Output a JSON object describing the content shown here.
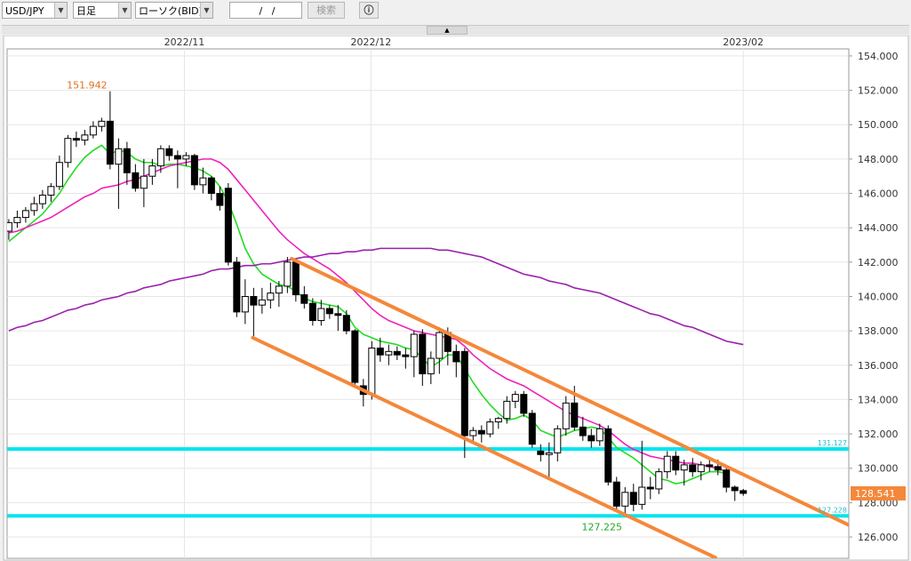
{
  "toolbar": {
    "symbol": "USD/JPY",
    "period": "日足",
    "chart_type": "ローソク(BID)",
    "date": "/   /",
    "search": "検索"
  },
  "chart_data": {
    "type": "candlestick",
    "open": [
      143.8,
      144.3,
      144.6,
      145.0,
      145.4,
      145.9,
      146.4,
      147.8,
      149.2,
      149.1,
      149.4,
      149.9,
      150.2,
      147.7,
      148.6,
      147.2,
      146.3,
      147.0,
      147.6,
      148.6,
      148.2,
      148.0,
      148.2,
      146.5,
      146.9,
      146.0,
      146.3,
      142.0,
      139.1,
      140.0,
      139.5,
      139.8,
      140.2,
      140.6,
      142.0,
      140.1,
      139.6,
      138.6,
      139.3,
      139.0,
      138.9,
      138.0,
      134.8,
      134.3,
      137.0,
      136.6,
      136.8,
      136.6,
      136.5,
      137.8,
      135.5,
      136.4,
      137.9,
      136.8,
      136.8,
      131.9,
      132.2,
      132.0,
      132.7,
      132.9,
      133.9,
      134.3,
      133.2,
      131.0,
      130.8,
      130.9,
      132.3,
      133.8,
      132.4,
      131.9,
      131.6,
      132.3,
      129.2,
      127.8,
      128.6,
      127.9,
      128.9,
      128.8,
      129.8,
      130.7,
      129.9,
      130.2,
      129.8,
      130.2,
      130.1,
      129.9,
      128.9,
      128.7
    ],
    "high": [
      144.5,
      145.0,
      145.2,
      145.8,
      146.2,
      146.6,
      148.2,
      149.4,
      149.6,
      149.7,
      150.2,
      150.4,
      151.942,
      149.2,
      149.0,
      147.7,
      148.0,
      148.0,
      148.8,
      148.8,
      148.5,
      148.4,
      148.3,
      147.5,
      147.0,
      146.4,
      146.6,
      142.3,
      141.0,
      140.5,
      140.5,
      140.8,
      140.9,
      142.3,
      142.2,
      140.6,
      139.9,
      139.8,
      139.5,
      139.5,
      139.2,
      138.1,
      135.2,
      137.4,
      137.6,
      137.2,
      137.1,
      137.0,
      138.0,
      138.1,
      136.8,
      138.2,
      138.2,
      137.2,
      137.0,
      132.4,
      132.5,
      132.9,
      133.0,
      134.2,
      134.5,
      134.5,
      133.4,
      131.4,
      131.5,
      132.5,
      134.2,
      134.8,
      133.0,
      132.3,
      132.6,
      132.5,
      129.5,
      128.9,
      129.1,
      131.6,
      129.5,
      130.0,
      131.0,
      131.0,
      130.5,
      130.6,
      130.4,
      130.5,
      130.5,
      130.2,
      129.0,
      128.8
    ],
    "low": [
      143.3,
      144.0,
      144.3,
      144.7,
      145.1,
      145.5,
      146.2,
      147.5,
      148.7,
      148.8,
      149.2,
      149.6,
      147.4,
      145.1,
      146.5,
      146.1,
      145.2,
      146.5,
      147.2,
      147.9,
      146.3,
      147.6,
      146.2,
      146.0,
      145.6,
      145.0,
      141.8,
      138.8,
      138.4,
      137.6,
      139.0,
      139.3,
      139.4,
      140.2,
      139.7,
      139.3,
      138.3,
      138.3,
      138.7,
      138.0,
      137.8,
      134.8,
      133.6,
      134.0,
      136.2,
      136.0,
      136.3,
      135.8,
      135.3,
      134.8,
      134.9,
      135.5,
      136.0,
      135.3,
      130.6,
      131.6,
      131.5,
      131.8,
      132.3,
      132.6,
      133.5,
      133.0,
      131.2,
      130.4,
      129.5,
      130.4,
      131.9,
      132.2,
      131.6,
      131.2,
      131.3,
      129.0,
      127.5,
      127.225,
      127.5,
      127.6,
      128.2,
      128.5,
      129.4,
      129.6,
      129.0,
      129.5,
      129.3,
      129.8,
      129.6,
      128.6,
      128.1,
      128.4
    ],
    "close": [
      144.3,
      144.6,
      145.0,
      145.4,
      145.9,
      146.4,
      147.8,
      149.2,
      149.1,
      149.4,
      149.9,
      150.2,
      147.7,
      148.6,
      147.2,
      146.3,
      147.0,
      147.6,
      148.6,
      148.2,
      148.0,
      148.2,
      146.5,
      146.9,
      146.0,
      145.3,
      142.0,
      139.1,
      140.0,
      139.5,
      139.8,
      140.2,
      140.6,
      142.0,
      140.1,
      139.6,
      138.6,
      139.3,
      139.0,
      138.9,
      138.0,
      135.0,
      134.3,
      137.0,
      136.6,
      136.8,
      136.6,
      136.5,
      137.8,
      135.5,
      136.4,
      137.9,
      136.8,
      136.2,
      131.9,
      132.2,
      132.0,
      132.7,
      132.9,
      133.9,
      134.3,
      133.2,
      131.4,
      130.8,
      130.9,
      132.3,
      133.8,
      132.4,
      131.9,
      131.6,
      132.3,
      129.2,
      127.8,
      128.6,
      127.9,
      128.9,
      128.8,
      129.8,
      130.7,
      129.9,
      130.2,
      129.8,
      130.2,
      130.1,
      129.9,
      128.9,
      128.7,
      128.541
    ],
    "series": [
      {
        "color": "#22dd22",
        "values": [
          143.2,
          143.6,
          144.0,
          144.4,
          144.8,
          145.4,
          146.0,
          146.8,
          147.5,
          148.1,
          148.5,
          148.8,
          148.3,
          148.5,
          148.4,
          148.0,
          147.8,
          147.8,
          147.6,
          147.7,
          147.7,
          147.6,
          147.5,
          147.3,
          147.0,
          146.4,
          145.5,
          144.2,
          142.8,
          141.9,
          141.3,
          141.0,
          140.7,
          140.6,
          140.3,
          139.9,
          139.7,
          139.6,
          139.5,
          139.4,
          139.0,
          138.2,
          137.8,
          137.6,
          137.4,
          137.3,
          137.2,
          137.0,
          136.9,
          136.4,
          135.9,
          136.2,
          136.6,
          136.6,
          135.8,
          135.0,
          134.3,
          133.7,
          133.2,
          132.8,
          132.9,
          133.1,
          132.8,
          132.2,
          132.0,
          131.8,
          132.0,
          132.2,
          132.3,
          132.4,
          132.3,
          131.8,
          131.2,
          130.9,
          130.6,
          130.2,
          129.8,
          129.4,
          129.3,
          129.1,
          129.2,
          129.4,
          129.6,
          129.8,
          129.8,
          129.7,
          null,
          null
        ]
      },
      {
        "color": "#ee22bb",
        "values": [
          143.7,
          143.8,
          144.0,
          144.2,
          144.4,
          144.6,
          144.9,
          145.2,
          145.5,
          145.8,
          146.0,
          146.3,
          146.4,
          146.5,
          146.7,
          146.8,
          147.0,
          147.2,
          147.4,
          147.6,
          147.7,
          147.8,
          147.9,
          148.0,
          148.0,
          147.8,
          147.4,
          146.8,
          146.2,
          145.6,
          145.0,
          144.4,
          143.8,
          143.3,
          142.9,
          142.5,
          142.2,
          141.9,
          141.6,
          141.2,
          140.8,
          140.3,
          139.8,
          139.3,
          138.9,
          138.6,
          138.4,
          138.2,
          138.0,
          137.9,
          137.8,
          137.7,
          137.6,
          137.5,
          137.1,
          136.6,
          136.2,
          135.8,
          135.5,
          135.2,
          135.0,
          134.8,
          134.5,
          134.2,
          133.9,
          133.6,
          133.3,
          133.1,
          132.9,
          132.7,
          132.5,
          132.2,
          131.8,
          131.4,
          131.1,
          130.9,
          130.7,
          130.6,
          130.5,
          130.4,
          130.3,
          130.3,
          130.2,
          130.1,
          130.0,
          129.8,
          null,
          null
        ]
      },
      {
        "color": "#9922aa",
        "values": [
          138.0,
          138.2,
          138.3,
          138.5,
          138.6,
          138.8,
          139.0,
          139.2,
          139.3,
          139.5,
          139.6,
          139.8,
          139.9,
          140.0,
          140.2,
          140.3,
          140.5,
          140.6,
          140.7,
          140.9,
          141.0,
          141.1,
          141.2,
          141.3,
          141.5,
          141.6,
          141.6,
          141.7,
          141.8,
          141.8,
          141.9,
          141.9,
          142.0,
          142.1,
          142.2,
          142.3,
          142.3,
          142.4,
          142.5,
          142.5,
          142.6,
          142.6,
          142.7,
          142.7,
          142.8,
          142.8,
          142.8,
          142.8,
          142.8,
          142.8,
          142.8,
          142.7,
          142.7,
          142.6,
          142.5,
          142.4,
          142.3,
          142.1,
          141.9,
          141.7,
          141.5,
          141.3,
          141.2,
          141.1,
          140.9,
          140.8,
          140.7,
          140.5,
          140.4,
          140.3,
          140.2,
          140.0,
          139.8,
          139.6,
          139.4,
          139.2,
          139.0,
          138.9,
          138.7,
          138.5,
          138.3,
          138.2,
          138.0,
          137.8,
          137.6,
          137.4,
          137.3,
          137.2
        ]
      }
    ],
    "trendlines": [
      {
        "color": "#f4883a",
        "x": [
          33.5,
          99.5
        ],
        "y": [
          142.2,
          126.7
        ]
      },
      {
        "color": "#f4883a",
        "x": [
          28.9,
          83.7
        ],
        "y": [
          137.6,
          124.8
        ]
      }
    ],
    "hlines": [
      {
        "color": "#00e5f0",
        "value": 131.127
      },
      {
        "color": "#00e5f0",
        "value": 127.228
      }
    ],
    "last_price": 128.541,
    "last_color": "#f4883a",
    "annotations": [
      {
        "index": 12,
        "value": 151.942,
        "color": "#e07020"
      },
      {
        "index": 73,
        "value": 127.225,
        "color": "#22aa22"
      }
    ],
    "xlim": [
      -0.2,
      99.5
    ],
    "xticks": [
      {
        "value": 20.8,
        "label": "2022/11"
      },
      {
        "value": 42.9,
        "label": "2022/12"
      },
      {
        "value": 87,
        "label": "2023/02"
      }
    ],
    "ylim": [
      124.76,
      154.41
    ],
    "yticks": [
      {
        "value": 126,
        "label": "126.000"
      },
      {
        "value": 128,
        "label": "128.000"
      },
      {
        "value": 130,
        "label": "130.000"
      },
      {
        "value": 132,
        "label": "132.000"
      },
      {
        "value": 134,
        "label": "134.000"
      },
      {
        "value": 136,
        "label": "136.000"
      },
      {
        "value": 138,
        "label": "138.000"
      },
      {
        "value": 140,
        "label": "140.000"
      },
      {
        "value": 142,
        "label": "142.000"
      },
      {
        "value": 144,
        "label": "144.000"
      },
      {
        "value": 146,
        "label": "146.000"
      },
      {
        "value": 148,
        "label": "148.000"
      },
      {
        "value": 150,
        "label": "150.000"
      },
      {
        "value": 152,
        "label": "152.000"
      },
      {
        "value": 154,
        "label": "154.000"
      }
    ],
    "grid": true
  }
}
